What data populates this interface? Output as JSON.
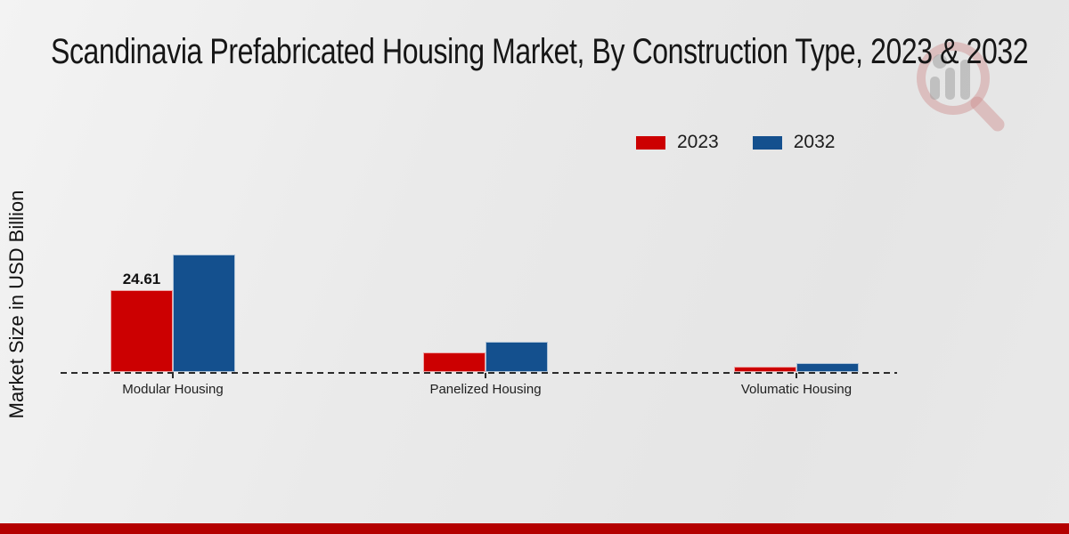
{
  "page": {
    "title": "Scandinavia Prefabricated Housing Market, By Construction Type, 2023 & 2032",
    "ylabel": "Market Size in USD Billion"
  },
  "legend": {
    "items": [
      {
        "label": "2023",
        "color": "#cc0001"
      },
      {
        "label": "2032",
        "color": "#14508e"
      }
    ]
  },
  "icons": {
    "watermark": "magnifier-bar-chart-logo"
  },
  "colors": {
    "bar_2023": "#cc0001",
    "bar_2032": "#14508e",
    "footer_bar": "#b40000",
    "baseline": "#2b2b2b"
  },
  "chart_data": {
    "type": "bar",
    "categories": [
      "Modular Housing",
      "Panelized Housing",
      "Volumatic Housing"
    ],
    "series": [
      {
        "name": "2023",
        "color": "#cc0001",
        "values": [
          24.61,
          6.0,
          1.6
        ]
      },
      {
        "name": "2032",
        "color": "#14508e",
        "values": [
          35.3,
          9.0,
          2.7
        ]
      }
    ],
    "value_labels": [
      {
        "series": "2023",
        "category": "Modular Housing",
        "text": "24.61"
      }
    ],
    "title": "Scandinavia Prefabricated Housing Market, By Construction Type, 2023 & 2032",
    "xlabel": "",
    "ylabel": "Market Size in USD Billion",
    "ylim": [
      0,
      37
    ],
    "grid": false,
    "legend_position": "top-right",
    "baseline_style": "dashed"
  }
}
